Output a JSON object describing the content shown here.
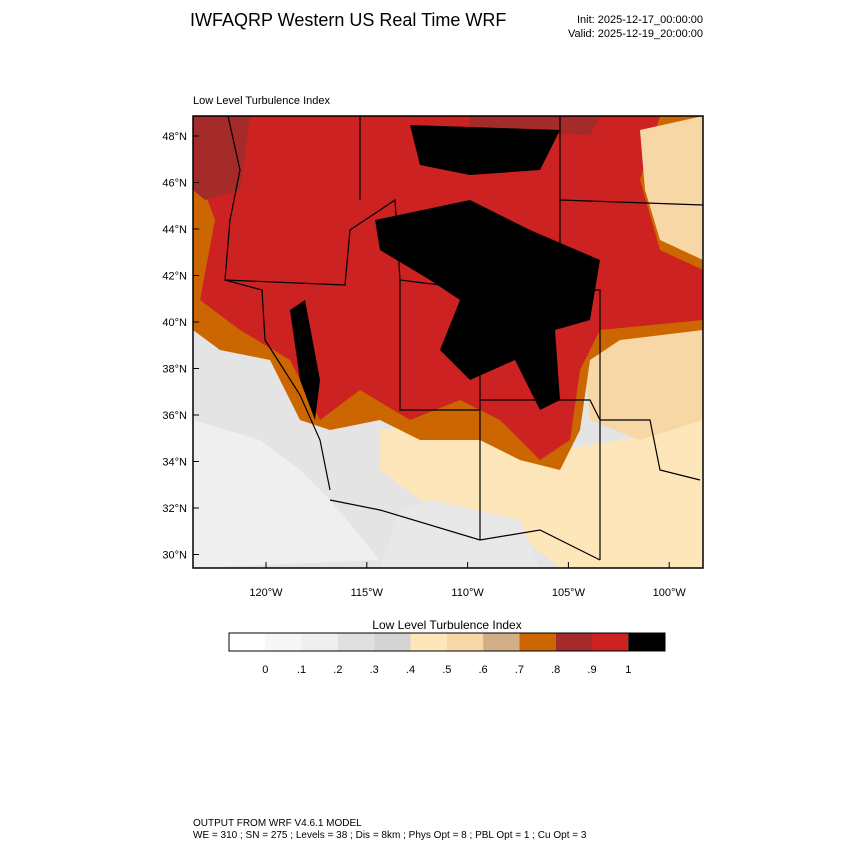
{
  "header": {
    "title": "IWFAQRP Western US Real Time WRF",
    "init": "Init: 2025-12-17_00:00:00",
    "valid": "Valid: 2025-12-19_20:00:00"
  },
  "map": {
    "title": "Low Level Turbulence Index",
    "lat_labels": [
      "48°N",
      "46°N",
      "44°N",
      "42°N",
      "40°N",
      "38°N",
      "36°N",
      "34°N",
      "32°N",
      "30°N"
    ],
    "lon_labels": [
      "120°W",
      "115°W",
      "110°W",
      "105°W",
      "100°W"
    ]
  },
  "colorbar": {
    "title": "Low Level Turbulence Index",
    "tick_labels": [
      "0",
      ".1",
      ".2",
      ".3",
      ".4",
      ".5",
      ".6",
      ".7",
      ".8",
      ".9",
      "1"
    ]
  },
  "footer": {
    "line1": "OUTPUT FROM WRF V4.6.1 MODEL",
    "line2": "WE = 310 ; SN = 275 ; Levels = 38 ; Dis = 8km ; Phys Opt = 8 ; PBL Opt = 1 ; Cu Opt = 3"
  }
}
